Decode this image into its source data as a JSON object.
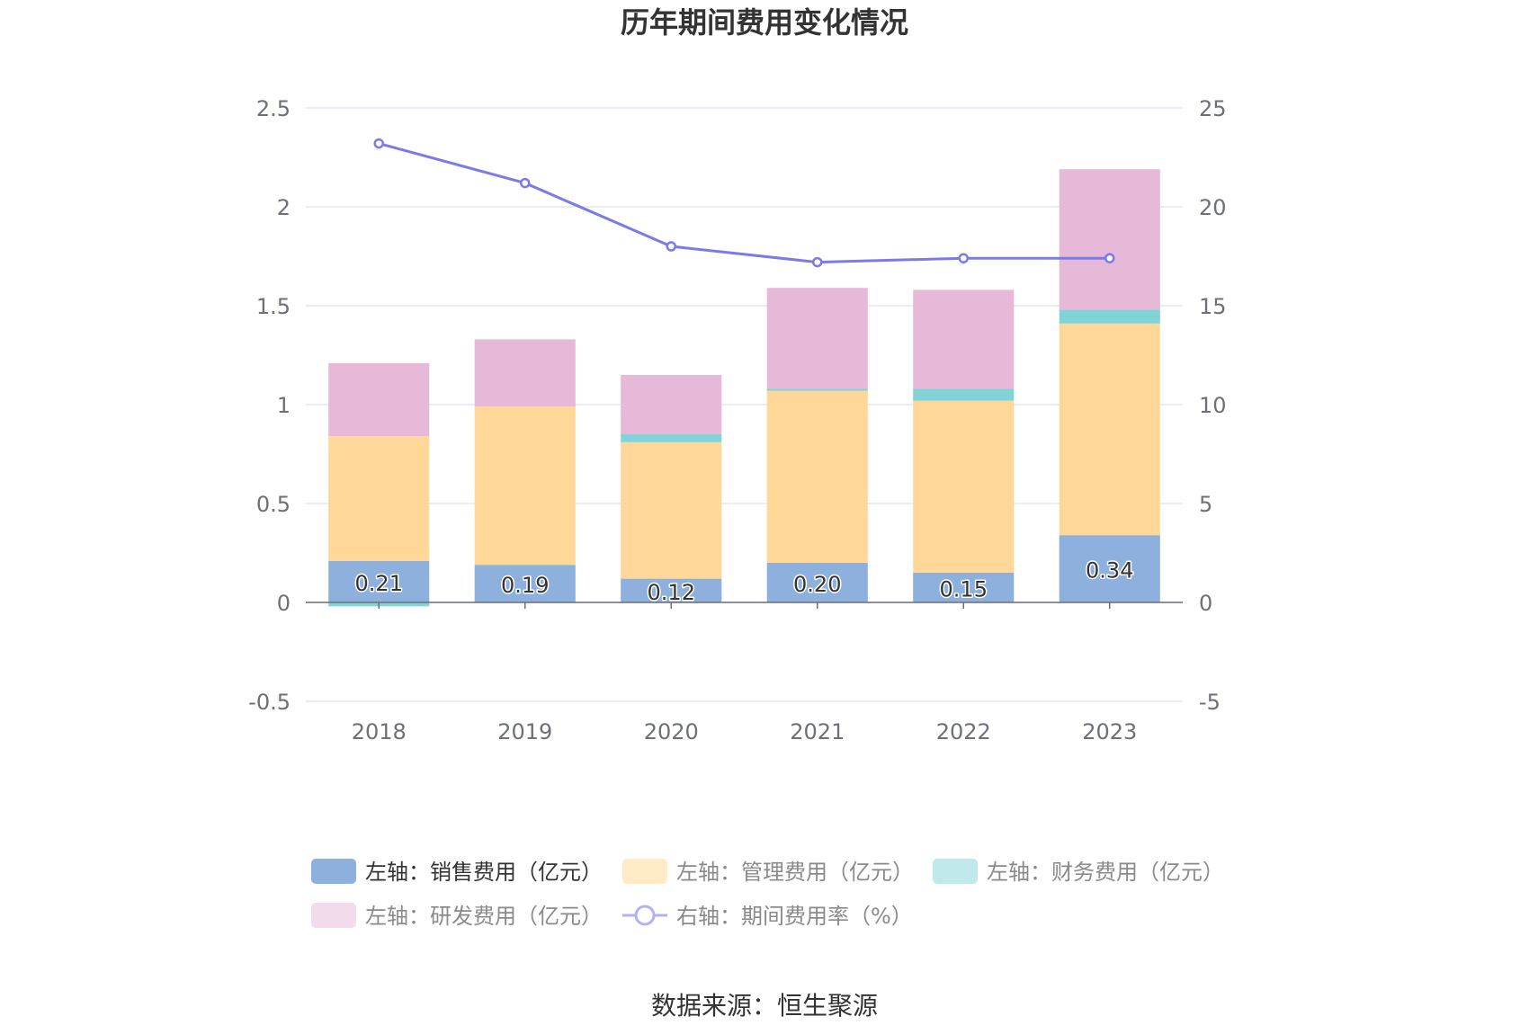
{
  "chart_data": {
    "type": "bar",
    "title": "历年期间费用变化情况",
    "categories": [
      "2018",
      "2019",
      "2020",
      "2021",
      "2022",
      "2023"
    ],
    "left_axis": {
      "ylim": [
        -0.5,
        2.5
      ],
      "ticks": [
        "2.5",
        "2",
        "1.5",
        "1",
        "0.5",
        "0",
        "-0.5"
      ]
    },
    "right_axis": {
      "ylim": [
        -5,
        25
      ],
      "ticks": [
        "25",
        "20",
        "15",
        "10",
        "5",
        "0",
        "-5"
      ]
    },
    "grid": true,
    "series": [
      {
        "name": "左轴：销售费用（亿元）",
        "type": "bar",
        "axis": "left",
        "color": "#8eb0dc",
        "values": [
          0.21,
          0.19,
          0.12,
          0.2,
          0.15,
          0.34
        ],
        "labels": [
          "0.21",
          "0.19",
          "0.12",
          "0.20",
          "0.15",
          "0.34"
        ]
      },
      {
        "name": "左轴：管理费用（亿元）",
        "type": "bar",
        "axis": "left",
        "color": "#ffd899",
        "values": [
          0.63,
          0.8,
          0.69,
          0.87,
          0.87,
          1.07
        ]
      },
      {
        "name": "左轴：财务费用（亿元）",
        "type": "bar",
        "axis": "left",
        "color": "#80d4d8",
        "values": [
          -0.02,
          0.0,
          0.04,
          0.01,
          0.06,
          0.07
        ]
      },
      {
        "name": "左轴：研发费用（亿元）",
        "type": "bar",
        "axis": "left",
        "color": "#e7b9d8",
        "values": [
          0.37,
          0.34,
          0.3,
          0.51,
          0.5,
          0.71
        ]
      },
      {
        "name": "右轴：期间费用率（%）",
        "type": "line",
        "axis": "right",
        "color": "#7b7be8",
        "values": [
          23.2,
          21.2,
          18.0,
          17.2,
          17.4,
          17.4
        ]
      }
    ],
    "legend": {
      "position": "bottom",
      "items": [
        {
          "label": "左轴：销售费用（亿元）",
          "color": "#8eb0dc",
          "kind": "rect",
          "active": true
        },
        {
          "label": "左轴：管理费用（亿元）",
          "color": "#ffecc7",
          "kind": "rect",
          "active": false
        },
        {
          "label": "左轴：财务费用（亿元）",
          "color": "#bfe9ea",
          "kind": "rect",
          "active": false
        },
        {
          "label": "左轴：研发费用（亿元）",
          "color": "#f2dcec",
          "kind": "rect",
          "active": false
        },
        {
          "label": "右轴：期间费用率（%）",
          "color": "#b2b2f0",
          "kind": "line",
          "active": false
        }
      ]
    }
  },
  "source": "数据来源：恒生聚源"
}
